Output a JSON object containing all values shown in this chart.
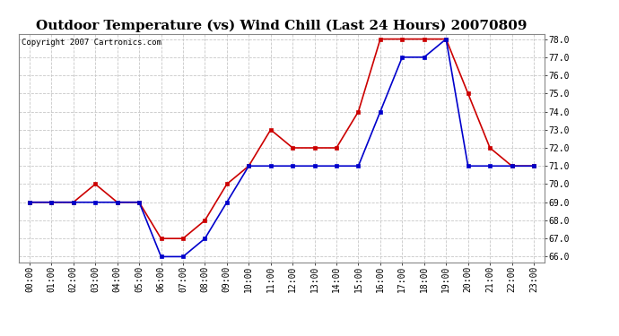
{
  "title": "Outdoor Temperature (vs) Wind Chill (Last 24 Hours) 20070809",
  "copyright": "Copyright 2007 Cartronics.com",
  "hours": [
    "00:00",
    "01:00",
    "02:00",
    "03:00",
    "04:00",
    "05:00",
    "06:00",
    "07:00",
    "08:00",
    "09:00",
    "10:00",
    "11:00",
    "12:00",
    "13:00",
    "14:00",
    "15:00",
    "16:00",
    "17:00",
    "18:00",
    "19:00",
    "20:00",
    "21:00",
    "22:00",
    "23:00"
  ],
  "temp": [
    69,
    69,
    69,
    70,
    69,
    69,
    67,
    67,
    68,
    70,
    71,
    73,
    72,
    72,
    72,
    74,
    78,
    78,
    78,
    78,
    75,
    72,
    71,
    71
  ],
  "windchill": [
    69,
    69,
    69,
    69,
    69,
    69,
    66,
    66,
    67,
    69,
    71,
    71,
    71,
    71,
    71,
    71,
    74,
    77,
    77,
    78,
    71,
    71,
    71,
    71
  ],
  "temp_color": "#cc0000",
  "windchill_color": "#0000cc",
  "ylim_min": 66.0,
  "ylim_max": 78.0,
  "background_color": "#ffffff",
  "grid_color": "#c8c8c8",
  "title_fontsize": 11,
  "tick_fontsize": 7,
  "copyright_fontsize": 6.5,
  "marker_size": 3,
  "line_width": 1.2
}
